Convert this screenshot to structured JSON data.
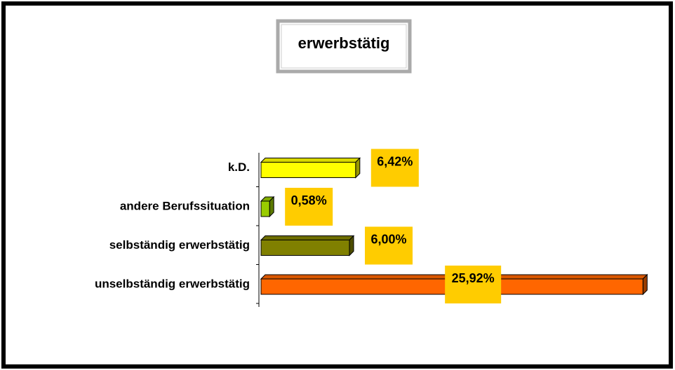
{
  "chart_data": {
    "type": "bar",
    "orientation": "horizontal",
    "title": "erwerbstätig",
    "categories": [
      "unselbständig erwerbstätig",
      "selbständig erwerbstätig",
      "andere Berufssituation",
      "k.D."
    ],
    "values": [
      25.92,
      6.0,
      0.58,
      6.42
    ],
    "value_labels": [
      "25,92%",
      "6,00%",
      "0,58%",
      "6,42%"
    ],
    "colors": [
      "#ff6600",
      "#808000",
      "#99cc00",
      "#ffff00"
    ],
    "label_background": "#ffcc00",
    "xlim": [
      0,
      26
    ]
  }
}
